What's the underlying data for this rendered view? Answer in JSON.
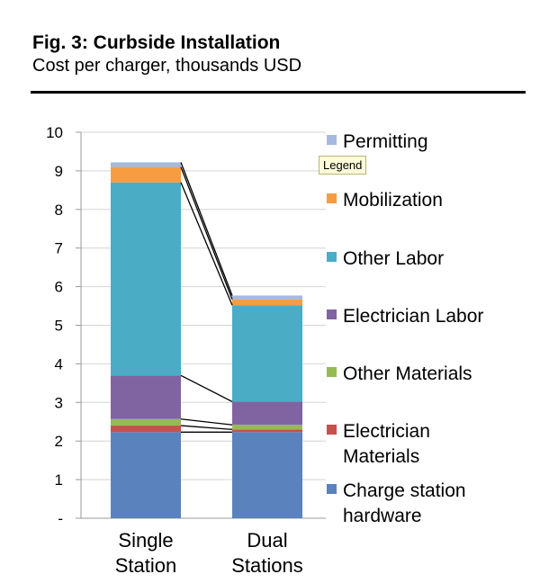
{
  "figure": {
    "title": "Fig. 3: Curbside Installation",
    "subtitle": "Cost per charger, thousands USD",
    "tooltip": "Legend"
  },
  "chart_data": {
    "type": "bar",
    "stacked": true,
    "categories": [
      [
        "Single",
        "Station"
      ],
      [
        "Dual",
        "Stations"
      ]
    ],
    "ylim": [
      0,
      10
    ],
    "yticks": [
      "-",
      "1",
      "2",
      "3",
      "4",
      "5",
      "6",
      "7",
      "8",
      "9",
      "10"
    ],
    "grid": true,
    "legend_position": "right",
    "series_lines": true,
    "series": [
      {
        "name": [
          "Charge station",
          "hardware"
        ],
        "color": "#5a82bd",
        "values": [
          2.23,
          2.23
        ]
      },
      {
        "name": [
          "Electrician",
          "Materials"
        ],
        "color": "#c5514d",
        "values": [
          0.17,
          0.07
        ]
      },
      {
        "name": [
          "Other Materials"
        ],
        "color": "#97ba55",
        "values": [
          0.17,
          0.12
        ]
      },
      {
        "name": [
          "Electrician Labor"
        ],
        "color": "#8064a2",
        "values": [
          1.13,
          0.6
        ]
      },
      {
        "name": [
          "Other Labor"
        ],
        "color": "#4bacc6",
        "values": [
          5.0,
          2.5
        ]
      },
      {
        "name": [
          "Mobilization"
        ],
        "color": "#f59d40",
        "values": [
          0.4,
          0.15
        ]
      },
      {
        "name": [
          "Permitting"
        ],
        "color": "#a5b9e0",
        "values": [
          0.12,
          0.1
        ]
      }
    ]
  }
}
